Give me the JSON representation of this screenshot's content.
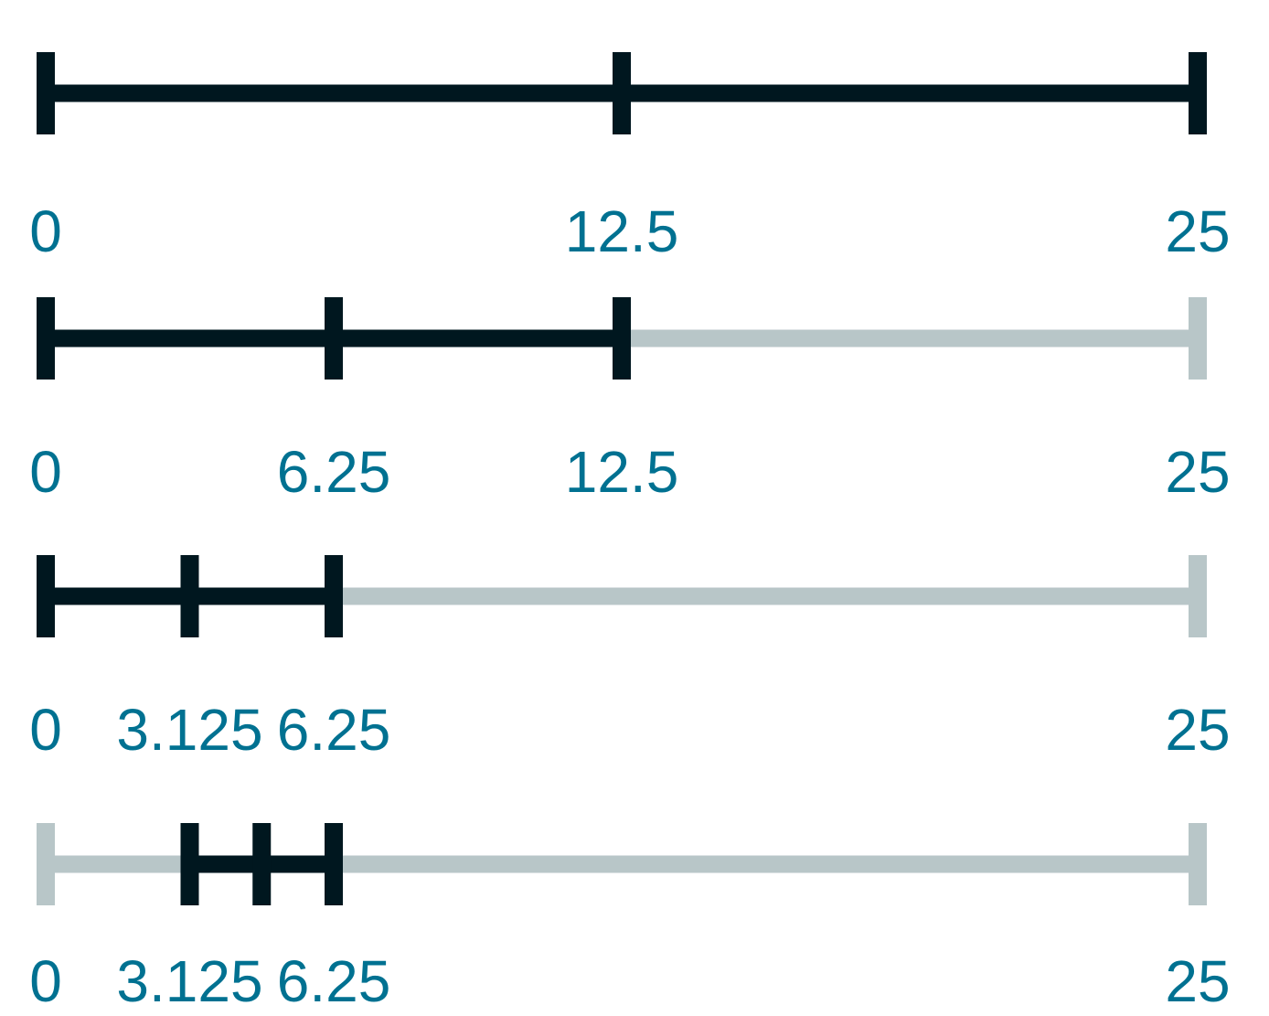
{
  "colors": {
    "active": "#00171f",
    "inactive": "#b8c6c8",
    "label": "#007191",
    "background": "#ffffff"
  },
  "scale": {
    "min": 0,
    "max": 25
  },
  "rows": [
    {
      "ticks": [
        0,
        12.5,
        25
      ],
      "active_range": [
        0,
        25
      ],
      "labels": [
        {
          "value": 0,
          "text": "0"
        },
        {
          "value": 12.5,
          "text": "12.5"
        },
        {
          "value": 25,
          "text": "25"
        }
      ]
    },
    {
      "ticks": [
        0,
        6.25,
        12.5,
        25
      ],
      "active_range": [
        0,
        12.5
      ],
      "labels": [
        {
          "value": 0,
          "text": "0"
        },
        {
          "value": 6.25,
          "text": "6.25"
        },
        {
          "value": 12.5,
          "text": "12.5"
        },
        {
          "value": 25,
          "text": "25"
        }
      ]
    },
    {
      "ticks": [
        0,
        3.125,
        6.25,
        25
      ],
      "active_range": [
        0,
        6.25
      ],
      "labels": [
        {
          "value": 0,
          "text": "0"
        },
        {
          "value": 3.125,
          "text": "3.125"
        },
        {
          "value": 6.25,
          "text": "6.25"
        },
        {
          "value": 25,
          "text": "25"
        }
      ]
    },
    {
      "ticks": [
        0,
        3.125,
        4.6875,
        6.25,
        25
      ],
      "active_range": [
        3.125,
        6.25
      ],
      "labels": [
        {
          "value": 0,
          "text": "0"
        },
        {
          "value": 3.125,
          "text": "3.125"
        },
        {
          "value": 6.25,
          "text": "6.25"
        },
        {
          "value": 25,
          "text": "25"
        }
      ]
    }
  ]
}
